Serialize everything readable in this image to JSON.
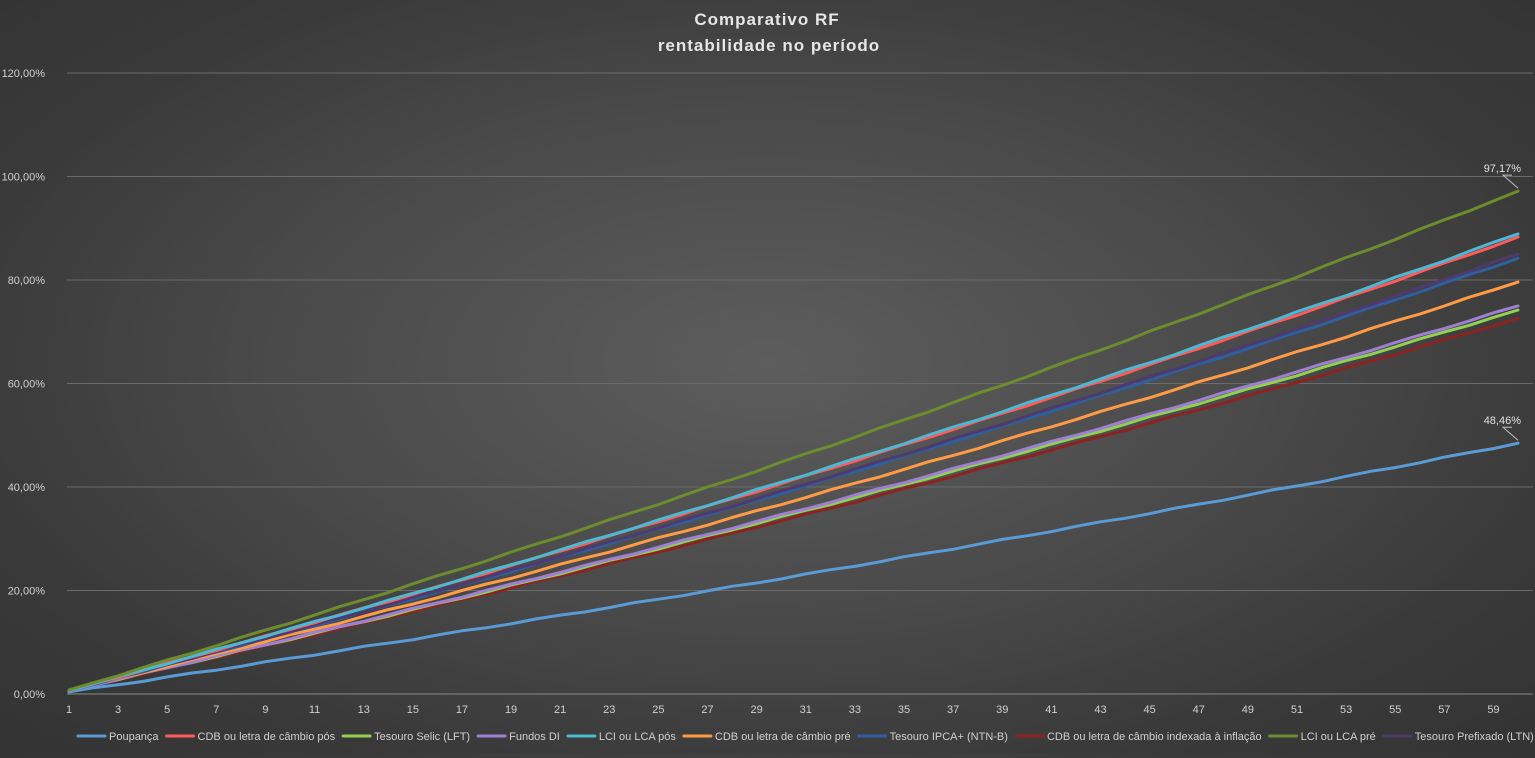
{
  "chart_data": {
    "type": "line",
    "title": "Comparativo RF",
    "subtitle": "rentabilidade no período",
    "xlabel": "",
    "ylabel": "",
    "x": [
      1,
      2,
      3,
      4,
      5,
      6,
      7,
      8,
      9,
      10,
      11,
      12,
      13,
      14,
      15,
      16,
      17,
      18,
      19,
      20,
      21,
      22,
      23,
      24,
      25,
      26,
      27,
      28,
      29,
      30,
      31,
      32,
      33,
      34,
      35,
      36,
      37,
      38,
      39,
      40,
      41,
      42,
      43,
      44,
      45,
      46,
      47,
      48,
      49,
      50,
      51,
      52,
      53,
      54,
      55,
      56,
      57,
      58,
      59,
      60
    ],
    "x_tick_labels": [
      "1",
      "3",
      "5",
      "7",
      "9",
      "11",
      "13",
      "15",
      "17",
      "19",
      "21",
      "23",
      "25",
      "27",
      "29",
      "31",
      "33",
      "35",
      "37",
      "39",
      "41",
      "43",
      "45",
      "47",
      "49",
      "51",
      "53",
      "55",
      "57",
      "59"
    ],
    "ylim": [
      0,
      120
    ],
    "y_tick_labels": [
      "0,00%",
      "20,00%",
      "40,00%",
      "60,00%",
      "80,00%",
      "100,00%",
      "120,00%"
    ],
    "y_tick_values": [
      0,
      20,
      40,
      60,
      80,
      100,
      120
    ],
    "grid": true,
    "legend_position": "bottom",
    "series": [
      {
        "name": "Poupança",
        "color": "#5b9bd5",
        "start": 0.4,
        "end": 48.46
      },
      {
        "name": "CDB ou letra de câmbio pós",
        "color": "#ff5b5b",
        "start": 0.7,
        "end": 88.3
      },
      {
        "name": "Tesouro Selic (LFT)",
        "color": "#92d050",
        "start": 0.7,
        "end": 74.2
      },
      {
        "name": "Fundos DI",
        "color": "#9f7fd4",
        "start": 0.7,
        "end": 75.0
      },
      {
        "name": "LCI ou LCA pós",
        "color": "#4bb8d4",
        "start": 0.7,
        "end": 88.9
      },
      {
        "name": "CDB ou letra de câmbio pré",
        "color": "#ff9b45",
        "start": 0.7,
        "end": 79.6
      },
      {
        "name": "Tesouro IPCA+ (NTN-B)",
        "color": "#2e5f9e",
        "start": 0.7,
        "end": 84.2
      },
      {
        "name": "CDB ou letra de câmbio indexada à inflação",
        "color": "#8b2323",
        "start": 0.7,
        "end": 72.6
      },
      {
        "name": "LCI ou LCA pré",
        "color": "#6e8c2e",
        "start": 0.8,
        "end": 97.17
      },
      {
        "name": "Tesouro Prefixado (LTN)",
        "color": "#4e3a6e",
        "start": 0.7,
        "end": 85.0
      }
    ],
    "data_labels": [
      {
        "series": "LCI ou LCA pré",
        "x": 60,
        "y": 97.17,
        "text": "97,17%"
      },
      {
        "series": "Poupança",
        "x": 60,
        "y": 48.46,
        "text": "48,46%"
      }
    ]
  }
}
